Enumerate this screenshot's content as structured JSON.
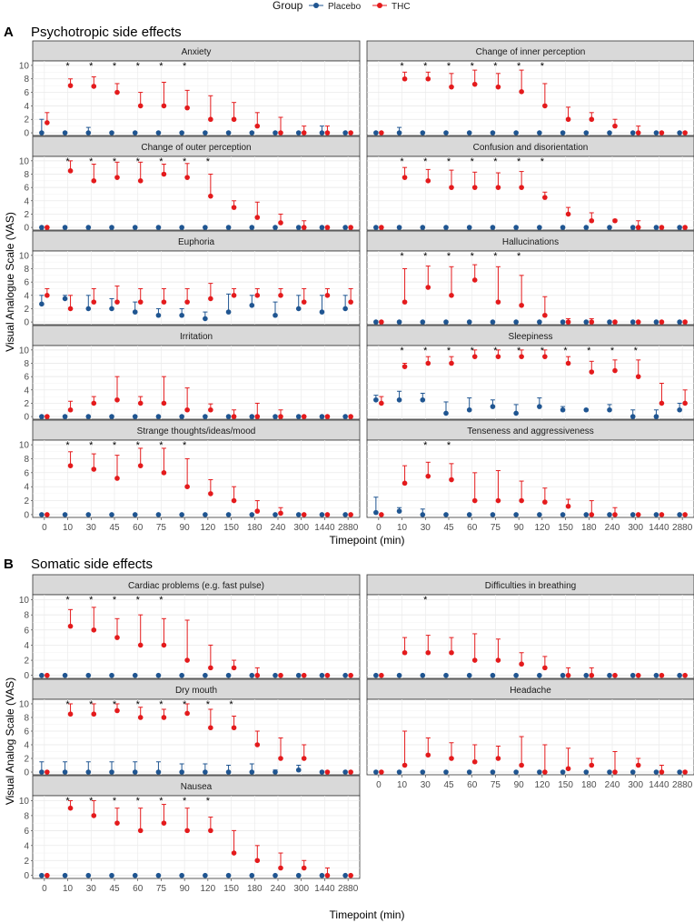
{
  "legend": {
    "title": "Group",
    "items": [
      {
        "label": "Placebo",
        "color": "#1f5591"
      },
      {
        "label": "THC",
        "color": "#e41a1c"
      }
    ]
  },
  "sections": [
    {
      "letter": "A",
      "title": "Psychotropic side effects",
      "y_axis_title": "Visual Analogue Scale (VAS)",
      "x_axis_title": "Timepoint (min)"
    },
    {
      "letter": "B",
      "title": "Somatic side effects",
      "y_axis_title": "Visual Analog Scale (VAS)",
      "x_axis_title": "Timepoint (min)"
    }
  ],
  "chart_data": {
    "type": "scatter",
    "subtype": "point-with-errorbars, faceted",
    "x": [
      "0",
      "10",
      "30",
      "45",
      "60",
      "75",
      "90",
      "120",
      "150",
      "180",
      "240",
      "300",
      "1440",
      "2880"
    ],
    "y_ticks": [
      "0",
      "2",
      "4",
      "6",
      "8",
      "10"
    ],
    "ylim": [
      0,
      10
    ],
    "series_names": [
      "Placebo",
      "THC"
    ],
    "grid": true,
    "legend_position": "top",
    "panels": [
      {
        "title": "Anxiety",
        "section": 0,
        "thc": [
          1.5,
          7.0,
          6.9,
          6.0,
          4.0,
          4.0,
          3.7,
          2.0,
          2.0,
          1.0,
          0,
          0,
          0,
          0
        ],
        "thc_hi": [
          3.0,
          8.0,
          8.3,
          7.3,
          6.0,
          7.5,
          6.3,
          5.5,
          4.5,
          3.0,
          2.3,
          1.0,
          1.0,
          0
        ],
        "pla": [
          0,
          0,
          0,
          0,
          0,
          0,
          0,
          0,
          0,
          0,
          0,
          0,
          0,
          0
        ],
        "pla_hi": [
          2.0,
          0,
          0.8,
          0,
          0,
          0,
          0,
          0,
          0,
          0,
          0,
          0,
          1.0,
          0
        ],
        "sig": [
          "10",
          "30",
          "45",
          "60",
          "75",
          "90"
        ]
      },
      {
        "title": "Change of inner perception",
        "section": 0,
        "thc": [
          0,
          8.0,
          8.0,
          6.8,
          7.2,
          6.8,
          6.1,
          4.0,
          2.0,
          2.0,
          1.0,
          0,
          0,
          0
        ],
        "thc_hi": [
          0,
          9.0,
          9.0,
          8.8,
          9.3,
          8.8,
          9.3,
          7.3,
          3.8,
          3.0,
          2.0,
          1.0,
          0,
          0
        ],
        "pla": [
          0,
          0,
          0,
          0,
          0,
          0,
          0,
          0,
          0,
          0,
          0,
          0,
          0,
          0
        ],
        "pla_hi": [
          0,
          0.8,
          0,
          0,
          0,
          0,
          0,
          0,
          0,
          0,
          0,
          0,
          0,
          0
        ],
        "sig": [
          "10",
          "30",
          "45",
          "60",
          "75",
          "90",
          "120"
        ]
      },
      {
        "title": "Change of outer perception",
        "section": 0,
        "thc": [
          0,
          8.5,
          7.0,
          7.5,
          7.0,
          8.0,
          7.5,
          4.7,
          3.0,
          1.5,
          0.7,
          0,
          0,
          0
        ],
        "thc_hi": [
          0,
          10.0,
          9.5,
          9.8,
          9.8,
          9.5,
          9.6,
          8.0,
          4.0,
          3.8,
          2.0,
          1.0,
          0,
          0
        ],
        "pla": [
          0,
          0,
          0,
          0,
          0,
          0,
          0,
          0,
          0,
          0,
          0,
          0,
          0,
          0
        ],
        "pla_hi": [
          0,
          0,
          0,
          0,
          0,
          0,
          0,
          0,
          0,
          0,
          0,
          0,
          0,
          0
        ],
        "sig": [
          "10",
          "30",
          "45",
          "60",
          "75",
          "90",
          "120"
        ]
      },
      {
        "title": "Confusion and disorientation",
        "section": 0,
        "thc": [
          0,
          7.5,
          7.0,
          6.0,
          6.0,
          6.0,
          6.0,
          4.5,
          2.0,
          1.0,
          1.0,
          0,
          0,
          0
        ],
        "thc_hi": [
          0,
          9.0,
          8.7,
          8.6,
          8.3,
          8.2,
          8.4,
          5.3,
          3.0,
          2.2,
          1.2,
          1.0,
          0,
          0
        ],
        "pla": [
          0,
          0,
          0,
          0,
          0,
          0,
          0,
          0,
          0,
          0,
          0,
          0,
          0,
          0
        ],
        "pla_hi": [
          0,
          0,
          0,
          0,
          0,
          0,
          0,
          0,
          0,
          0,
          0,
          0,
          0,
          0
        ],
        "sig": [
          "10",
          "30",
          "45",
          "60",
          "75",
          "90",
          "120"
        ]
      },
      {
        "title": "Euphoria",
        "section": 0,
        "thc": [
          4.0,
          2.0,
          3.0,
          3.0,
          3.0,
          3.0,
          3.0,
          3.5,
          4.0,
          4.0,
          4.0,
          3.0,
          4.0,
          3.0
        ],
        "thc_hi": [
          5.0,
          4.0,
          5.0,
          5.4,
          5.0,
          5.0,
          5.0,
          5.8,
          5.0,
          5.0,
          5.0,
          5.0,
          5.0,
          5.0
        ],
        "pla": [
          2.7,
          3.5,
          2.0,
          2.0,
          1.5,
          1.0,
          1.0,
          0.5,
          1.5,
          2.5,
          1.0,
          2.0,
          1.5,
          2.0
        ],
        "pla_hi": [
          4.0,
          4.0,
          4.0,
          3.5,
          3.0,
          2.0,
          2.0,
          1.5,
          4.2,
          4.0,
          3.0,
          4.0,
          4.0,
          4.0
        ],
        "sig": []
      },
      {
        "title": "Hallucinations",
        "section": 0,
        "thc": [
          0,
          3.0,
          5.2,
          4.0,
          6.3,
          3.0,
          2.5,
          1.0,
          0,
          0,
          0,
          0,
          0,
          0
        ],
        "thc_hi": [
          0,
          8.0,
          8.4,
          8.3,
          8.6,
          8.3,
          7.0,
          3.8,
          0.5,
          0.5,
          0,
          0,
          0,
          0
        ],
        "pla": [
          0,
          0,
          0,
          0,
          0,
          0,
          0,
          0,
          0,
          0,
          0,
          0,
          0,
          0
        ],
        "pla_hi": [
          0,
          0,
          0,
          0,
          0,
          0,
          0,
          0,
          0,
          0,
          0,
          0,
          0,
          0
        ],
        "sig": [
          "10",
          "30",
          "45",
          "60",
          "75",
          "90"
        ]
      },
      {
        "title": "Irritation",
        "section": 0,
        "thc": [
          0,
          1.0,
          2.0,
          2.5,
          2.0,
          2.0,
          1.0,
          1.0,
          0,
          0,
          0,
          0,
          0,
          0
        ],
        "thc_hi": [
          0,
          2.3,
          3.0,
          6.0,
          3.0,
          6.0,
          4.3,
          1.9,
          1.0,
          2.0,
          1.0,
          0,
          0,
          0
        ],
        "pla": [
          0,
          0,
          0,
          0,
          0,
          0,
          0,
          0,
          0,
          0,
          0,
          0,
          0,
          0
        ],
        "pla_hi": [
          0,
          0,
          0,
          0,
          0,
          0,
          0,
          0,
          0,
          0,
          0,
          0,
          0,
          0
        ],
        "sig": []
      },
      {
        "title": "Sleepiness",
        "section": 0,
        "thc": [
          2.0,
          7.5,
          8.0,
          8.0,
          9.0,
          9.0,
          9.0,
          9.0,
          8.0,
          6.7,
          6.9,
          6.0,
          2.0,
          2.0
        ],
        "thc_hi": [
          3.0,
          8.0,
          9.0,
          9.0,
          10.0,
          10.0,
          10.0,
          10.0,
          9.0,
          8.3,
          8.5,
          8.5,
          5.0,
          4.0
        ],
        "pla": [
          2.5,
          2.5,
          2.5,
          0.5,
          1.0,
          1.5,
          0.5,
          1.5,
          1.0,
          1.0,
          1.0,
          0,
          0,
          1.0
        ],
        "pla_hi": [
          3.2,
          3.8,
          3.5,
          2.2,
          2.8,
          2.5,
          1.8,
          2.8,
          1.5,
          1.0,
          1.8,
          1.0,
          1.0,
          2.0
        ],
        "sig": [
          "10",
          "30",
          "45",
          "60",
          "75",
          "90",
          "120",
          "150",
          "180",
          "240",
          "300"
        ]
      },
      {
        "title": "Strange thoughts/ideas/mood",
        "section": 0,
        "thc": [
          0,
          7.0,
          6.5,
          5.2,
          7.0,
          6.0,
          4.0,
          3.0,
          2.0,
          0.5,
          0.2,
          0,
          0,
          0
        ],
        "thc_hi": [
          0,
          9.0,
          8.7,
          8.5,
          9.5,
          9.5,
          8.0,
          5.0,
          4.0,
          2.0,
          1.0,
          0,
          0,
          0
        ],
        "pla": [
          0,
          0,
          0,
          0,
          0,
          0,
          0,
          0,
          0,
          0,
          0,
          0,
          0,
          0
        ],
        "pla_hi": [
          0,
          0,
          0,
          0,
          0,
          0,
          0,
          0,
          0,
          0,
          0,
          0,
          0,
          0
        ],
        "sig": [
          "10",
          "30",
          "45",
          "60",
          "75",
          "90"
        ]
      },
      {
        "title": "Tenseness and aggressiveness",
        "section": 0,
        "thc": [
          0,
          4.5,
          5.5,
          5.0,
          2.0,
          2.0,
          2.0,
          1.8,
          1.2,
          0,
          0,
          0,
          0,
          0
        ],
        "thc_hi": [
          0,
          7.0,
          7.5,
          7.3,
          6.0,
          6.3,
          4.8,
          3.8,
          2.2,
          2.0,
          1.0,
          0,
          0,
          0
        ],
        "pla": [
          0.3,
          0.5,
          0,
          0,
          0,
          0,
          0,
          0,
          0,
          0,
          0,
          0,
          0,
          0
        ],
        "pla_hi": [
          2.5,
          1.0,
          0.8,
          0,
          0,
          0,
          0,
          0,
          0,
          0,
          0,
          0,
          0,
          0
        ],
        "sig": [
          "30",
          "45"
        ]
      },
      {
        "title": "Cardiac problems (e.g. fast pulse)",
        "section": 1,
        "thc": [
          0,
          6.5,
          6.0,
          5.0,
          4.0,
          4.0,
          2.0,
          1.0,
          1.0,
          0,
          0,
          0,
          0,
          0
        ],
        "thc_hi": [
          0,
          8.7,
          9.0,
          7.5,
          8.0,
          7.5,
          7.3,
          4.0,
          2.0,
          1.0,
          0,
          0,
          0,
          0
        ],
        "pla": [
          0,
          0,
          0,
          0,
          0,
          0,
          0,
          0,
          0,
          0,
          0,
          0,
          0,
          0
        ],
        "pla_hi": [
          0,
          0,
          0,
          0,
          0,
          0,
          0,
          0,
          0,
          0,
          0,
          0,
          0,
          0
        ],
        "sig": [
          "10",
          "30",
          "45",
          "60",
          "75"
        ]
      },
      {
        "title": "Difficulties in breathing",
        "section": 1,
        "thc": [
          0,
          3.0,
          3.0,
          3.0,
          2.0,
          2.0,
          1.5,
          1.0,
          0,
          0,
          0,
          0,
          0,
          0
        ],
        "thc_hi": [
          0,
          5.0,
          5.3,
          5.0,
          5.5,
          4.8,
          3.0,
          2.5,
          1.0,
          1.0,
          0,
          0,
          0,
          0
        ],
        "pla": [
          0,
          0,
          0,
          0,
          0,
          0,
          0,
          0,
          0,
          0,
          0,
          0,
          0,
          0
        ],
        "pla_hi": [
          0,
          0,
          0,
          0,
          0,
          0,
          0,
          0,
          0,
          0,
          0,
          0,
          0,
          0
        ],
        "sig": [
          "30"
        ]
      },
      {
        "title": "Dry mouth",
        "section": 1,
        "thc": [
          0,
          8.5,
          8.5,
          9.0,
          8.0,
          8.0,
          8.6,
          6.5,
          6.5,
          4.0,
          2.0,
          2.0,
          0,
          0
        ],
        "thc_hi": [
          0,
          10.0,
          10.0,
          10.0,
          9.5,
          9.2,
          10.0,
          9.2,
          8.2,
          6.0,
          5.0,
          4.0,
          0,
          0
        ],
        "pla": [
          0,
          0,
          0,
          0,
          0,
          0,
          0,
          0,
          0,
          0,
          0,
          0.3,
          0,
          0
        ],
        "pla_hi": [
          1.5,
          1.5,
          1.5,
          1.5,
          1.5,
          1.5,
          1.2,
          1.2,
          1.0,
          1.2,
          0.3,
          1.0,
          0,
          0
        ],
        "sig": [
          "10",
          "30",
          "45",
          "60",
          "75",
          "90",
          "120",
          "150"
        ]
      },
      {
        "title": "Headache",
        "section": 1,
        "thc": [
          0,
          1.0,
          2.5,
          2.0,
          1.5,
          2.0,
          1.0,
          0,
          0.5,
          1.0,
          0,
          1.0,
          0,
          0
        ],
        "thc_hi": [
          0,
          6.0,
          5.0,
          4.3,
          4.0,
          3.8,
          5.2,
          4.0,
          3.5,
          2.0,
          3.0,
          2.0,
          1.0,
          0
        ],
        "pla": [
          0,
          0,
          0,
          0,
          0,
          0,
          0,
          0,
          0,
          0,
          0,
          0,
          0,
          0
        ],
        "pla_hi": [
          0,
          0,
          0,
          0,
          0,
          0,
          0,
          0,
          0,
          0,
          0,
          0,
          0,
          0
        ],
        "sig": []
      },
      {
        "title": "Nausea",
        "section": 1,
        "thc": [
          0,
          9.0,
          8.0,
          7.0,
          6.0,
          7.0,
          6.0,
          6.0,
          3.0,
          2.0,
          1.0,
          1.0,
          0,
          0
        ],
        "thc_hi": [
          0,
          10.0,
          10.0,
          9.0,
          9.0,
          9.5,
          9.0,
          7.8,
          6.0,
          4.0,
          3.0,
          2.0,
          1.0,
          0
        ],
        "pla": [
          0,
          0,
          0,
          0,
          0,
          0,
          0,
          0,
          0,
          0,
          0,
          0,
          0,
          0
        ],
        "pla_hi": [
          0,
          0,
          0,
          0,
          0,
          0,
          0,
          0,
          0,
          0,
          0,
          0,
          0,
          0
        ],
        "sig": [
          "10",
          "30",
          "45",
          "60",
          "75",
          "90",
          "120"
        ]
      }
    ]
  }
}
